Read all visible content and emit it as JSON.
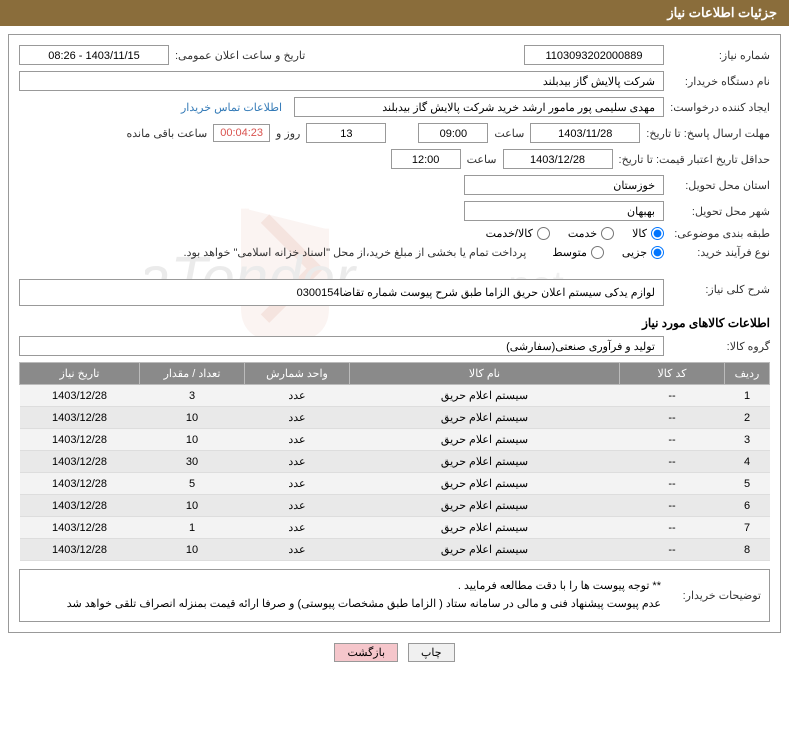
{
  "header": "جزئیات اطلاعات نیاز",
  "labels": {
    "need_no": "شماره نیاز:",
    "public_datetime": "تاریخ و ساعت اعلان عمومی:",
    "buyer_org": "نام دستگاه خریدار:",
    "requester": "ایجاد کننده درخواست:",
    "contact_link": "اطلاعات تماس خریدار",
    "response_deadline": "مهلت ارسال پاسخ: تا تاریخ:",
    "time_lbl": "ساعت",
    "days_and": "روز و",
    "remaining": "ساعت باقی مانده",
    "price_validity": "حداقل تاریخ اعتبار قیمت: تا تاریخ:",
    "delivery_province": "استان محل تحویل:",
    "delivery_city": "شهر محل تحویل:",
    "category": "طبقه بندی موضوعی:",
    "purchase_process": "نوع فرآیند خرید:",
    "purchase_note": "پرداخت تمام یا بخشی از مبلغ خرید،از محل \"اسناد خزانه اسلامی\" خواهد بود.",
    "overall_desc": "شرح کلی نیاز:",
    "goods_info_title": "اطلاعات کالاهای مورد نیاز",
    "goods_group": "گروه کالا:",
    "buyer_notes_lbl": "توضیحات خریدار:"
  },
  "values": {
    "need_no": "1103093202000889",
    "public_datetime": "1403/11/15 - 08:26",
    "buyer_org": "شرکت پالایش گاز بیدبلند",
    "requester": "مهدی سلیمی پور مامور ارشد خرید شرکت پالایش گاز بیدبلند",
    "resp_date": "1403/11/28",
    "resp_time": "09:00",
    "days_left": "13",
    "time_left": "00:04:23",
    "price_date": "1403/12/28",
    "price_time": "12:00",
    "province": "خوزستان",
    "city": "بهبهان",
    "overall_desc": "لوازم یدکی سیستم اعلان حریق الزاما طبق شرح پیوست شماره تقاضا0300154",
    "goods_group": "تولید و فرآوری صنعتی(سفارشی)"
  },
  "category_options": [
    "کالا",
    "خدمت",
    "کالا/خدمت"
  ],
  "category_selected": 0,
  "process_options": [
    "جزیی",
    "متوسط"
  ],
  "process_selected": 0,
  "table": {
    "columns": [
      "ردیف",
      "کد کالا",
      "نام کالا",
      "واحد شمارش",
      "تعداد / مقدار",
      "تاریخ نیاز"
    ],
    "col_widths": [
      "6%",
      "14%",
      "36%",
      "14%",
      "14%",
      "16%"
    ],
    "rows": [
      [
        "1",
        "--",
        "سیستم اعلام حریق",
        "عدد",
        "3",
        "1403/12/28"
      ],
      [
        "2",
        "--",
        "سیستم اعلام حریق",
        "عدد",
        "10",
        "1403/12/28"
      ],
      [
        "3",
        "--",
        "سیستم اعلام حریق",
        "عدد",
        "10",
        "1403/12/28"
      ],
      [
        "4",
        "--",
        "سیستم اعلام حریق",
        "عدد",
        "30",
        "1403/12/28"
      ],
      [
        "5",
        "--",
        "سیستم اعلام حریق",
        "عدد",
        "5",
        "1403/12/28"
      ],
      [
        "6",
        "--",
        "سیستم اعلام حریق",
        "عدد",
        "10",
        "1403/12/28"
      ],
      [
        "7",
        "--",
        "سیستم اعلام حریق",
        "عدد",
        "1",
        "1403/12/28"
      ],
      [
        "8",
        "--",
        "سیستم اعلام حریق",
        "عدد",
        "10",
        "1403/12/28"
      ]
    ]
  },
  "buyer_notes": "** توجه پیوست ها  را با دقت مطالعه فرمایید .\nعدم پیوست پیشنهاد فنی و مالی در سامانه ستاد ( الزاما طبق مشخصات پیوستی)  و صرفا ارائه قیمت بمنزله انصراف تلقی خواهد شد",
  "buttons": {
    "print": "چاپ",
    "back": "بازگشت"
  },
  "colors": {
    "header_bg": "#8a6d3b",
    "header_fg": "#ffffff",
    "th_bg": "#8a8a8a",
    "link": "#337ab7",
    "timer": "#d9534f"
  }
}
